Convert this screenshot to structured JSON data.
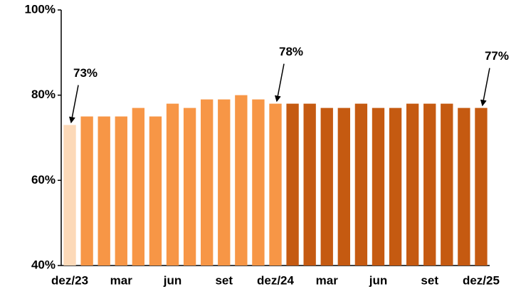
{
  "chart_data": {
    "type": "bar",
    "categories": [
      "dez/23",
      null,
      null,
      "mar",
      null,
      null,
      "jun",
      null,
      null,
      "set",
      null,
      null,
      "dez/24",
      null,
      null,
      "mar",
      null,
      null,
      "jun",
      null,
      null,
      "set",
      null,
      null,
      "dez/25"
    ],
    "values": [
      73,
      75,
      75,
      75,
      77,
      75,
      78,
      77,
      79,
      79,
      80,
      79,
      78,
      78,
      78,
      77,
      77,
      78,
      77,
      77,
      78,
      78,
      78,
      77,
      77
    ],
    "value_labels": [
      "73%",
      null,
      null,
      null,
      null,
      null,
      null,
      null,
      null,
      null,
      null,
      null,
      "78%",
      null,
      null,
      null,
      null,
      null,
      null,
      null,
      null,
      null,
      null,
      null,
      "77%"
    ],
    "colors": [
      "#fcd9b8",
      "#f79646",
      "#f79646",
      "#f79646",
      "#f79646",
      "#f79646",
      "#f79646",
      "#f79646",
      "#f79646",
      "#f79646",
      "#f79646",
      "#f79646",
      "#f79646",
      "#c55a11",
      "#c55a11",
      "#c55a11",
      "#c55a11",
      "#c55a11",
      "#c55a11",
      "#c55a11",
      "#c55a11",
      "#c55a11",
      "#c55a11",
      "#c55a11",
      "#c55a11"
    ],
    "ylim": [
      40,
      100
    ],
    "yticks": [
      {
        "value": 40,
        "label": "40%"
      },
      {
        "value": 60,
        "label": "60%"
      },
      {
        "value": 80,
        "label": "80%"
      },
      {
        "value": 100,
        "label": "100%"
      }
    ],
    "grid": false
  }
}
